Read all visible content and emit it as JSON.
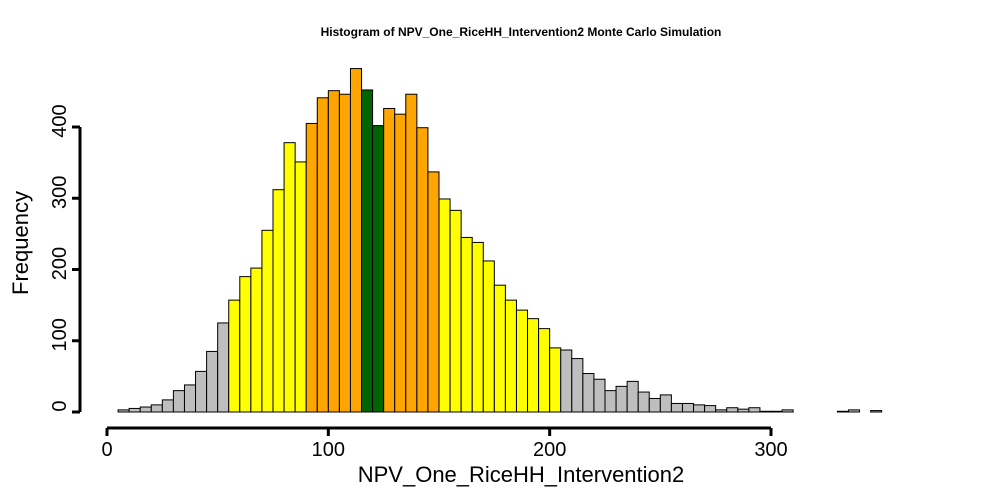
{
  "chart_data": {
    "type": "bar",
    "title": "Histogram of  NPV_One_RiceHH_Intervention2  Monte Carlo Simulation",
    "xlabel": "NPV_One_RiceHH_Intervention2",
    "ylabel": "Frequency",
    "bin_width": 5,
    "bin_start": 0,
    "xlim": [
      0,
      375
    ],
    "ylim": [
      0,
      480
    ],
    "x_ticks": [
      0,
      100,
      200,
      300
    ],
    "y_ticks": [
      0,
      100,
      200,
      300,
      400
    ],
    "grid": false,
    "legend": "none",
    "colors": {
      "outer": "#bebebe",
      "mid": "#ffff00",
      "inner": "#ffa500",
      "center": "#006400",
      "border": "#000000"
    },
    "color_bands": [
      {
        "from": 0,
        "to": 55,
        "color": "outer"
      },
      {
        "from": 55,
        "to": 90,
        "color": "mid"
      },
      {
        "from": 90,
        "to": 115,
        "color": "inner"
      },
      {
        "from": 115,
        "to": 125,
        "color": "center"
      },
      {
        "from": 125,
        "to": 150,
        "color": "inner"
      },
      {
        "from": 150,
        "to": 205,
        "color": "mid"
      },
      {
        "from": 205,
        "to": 375,
        "color": "outer"
      }
    ],
    "values": [
      0,
      3,
      5,
      7,
      10,
      17,
      30,
      38,
      57,
      85,
      125,
      157,
      190,
      202,
      255,
      312,
      378,
      351,
      405,
      441,
      451,
      446,
      482,
      452,
      402,
      426,
      418,
      446,
      399,
      337,
      299,
      283,
      245,
      238,
      212,
      178,
      157,
      143,
      131,
      117,
      90,
      87,
      75,
      54,
      46,
      30,
      36,
      43,
      28,
      19,
      24,
      12,
      12,
      10,
      9,
      3,
      6,
      4,
      6,
      1,
      1,
      3,
      0,
      0,
      0,
      0,
      1,
      3,
      0,
      2,
      0,
      0,
      0,
      0,
      0
    ]
  }
}
